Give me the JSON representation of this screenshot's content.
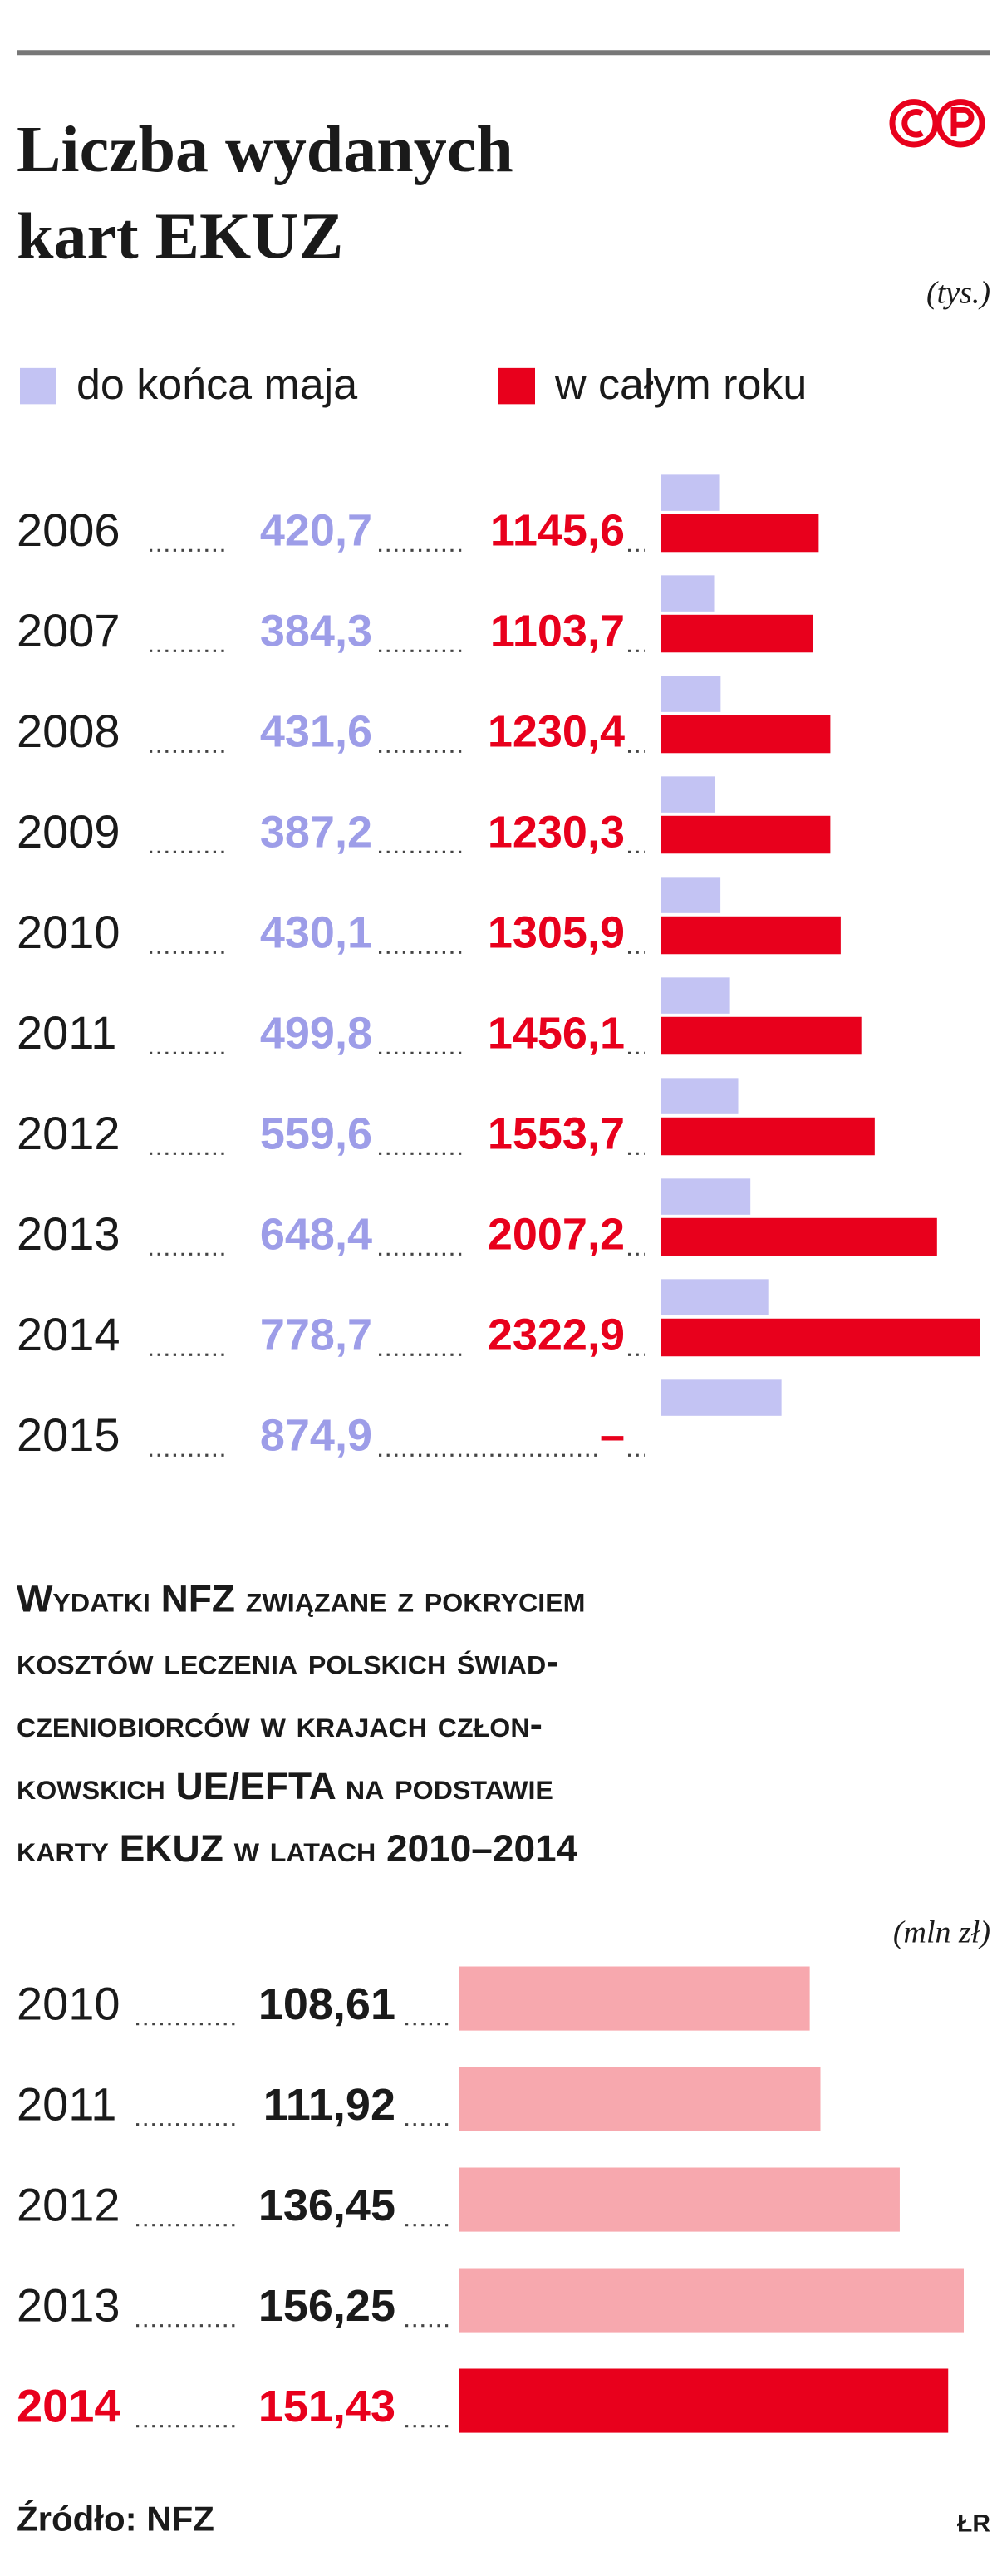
{
  "chart_data": [
    {
      "type": "bar",
      "title": [
        "Liczba wydanych",
        "kart EKUZ"
      ],
      "unit": "(tys.)",
      "categories": [
        "2006",
        "2007",
        "2008",
        "2009",
        "2010",
        "2011",
        "2012",
        "2013",
        "2014",
        "2015"
      ],
      "series": [
        {
          "name": "do końca maja",
          "color": "#c3c3f3",
          "label_color": "#9d9de8",
          "values": [
            420.7,
            384.3,
            431.6,
            387.2,
            430.1,
            499.8,
            559.6,
            648.4,
            778.7,
            874.9
          ],
          "value_labels": [
            "420,7",
            "384,3",
            "431,6",
            "387,2",
            "430,1",
            "499,8",
            "559,6",
            "648,4",
            "778,7",
            "874,9"
          ]
        },
        {
          "name": "w całym roku",
          "color": "#e8001c",
          "label_color": "#e8001c",
          "values": [
            1145.6,
            1103.7,
            1230.4,
            1230.3,
            1305.9,
            1456.1,
            1553.7,
            2007.2,
            2322.9,
            null
          ],
          "value_labels": [
            "1145,6",
            "1103,7",
            "1230,4",
            "1230,3",
            "1305,9",
            "1456,1",
            "1553,7",
            "2007,2",
            "2322,9",
            "–"
          ]
        }
      ]
    },
    {
      "type": "bar",
      "title": [
        "Wydatki NFZ związane z pokryciem",
        "kosztów leczenia polskich świad-",
        "czeniobiorców w krajach człon-",
        "kowskich UE/EFTA na podstawie",
        "karty EKUZ w latach 2010–2014"
      ],
      "unit": "(mln zł)",
      "categories": [
        "2010",
        "2011",
        "2012",
        "2013",
        "2014"
      ],
      "values": [
        108.61,
        111.92,
        136.45,
        156.25,
        151.43
      ],
      "value_labels": [
        "108,61",
        "111,92",
        "136,45",
        "156,25",
        "151,43"
      ],
      "colors": [
        "#f7a8ae",
        "#f7a8ae",
        "#f7a8ae",
        "#f7a8ae",
        "#e8001c"
      ],
      "label_colors": [
        "#1a1a1a",
        "#1a1a1a",
        "#1a1a1a",
        "#1a1a1a",
        "#e8001c"
      ]
    }
  ],
  "source": "Źródło: NFZ",
  "credit": "ŁR"
}
